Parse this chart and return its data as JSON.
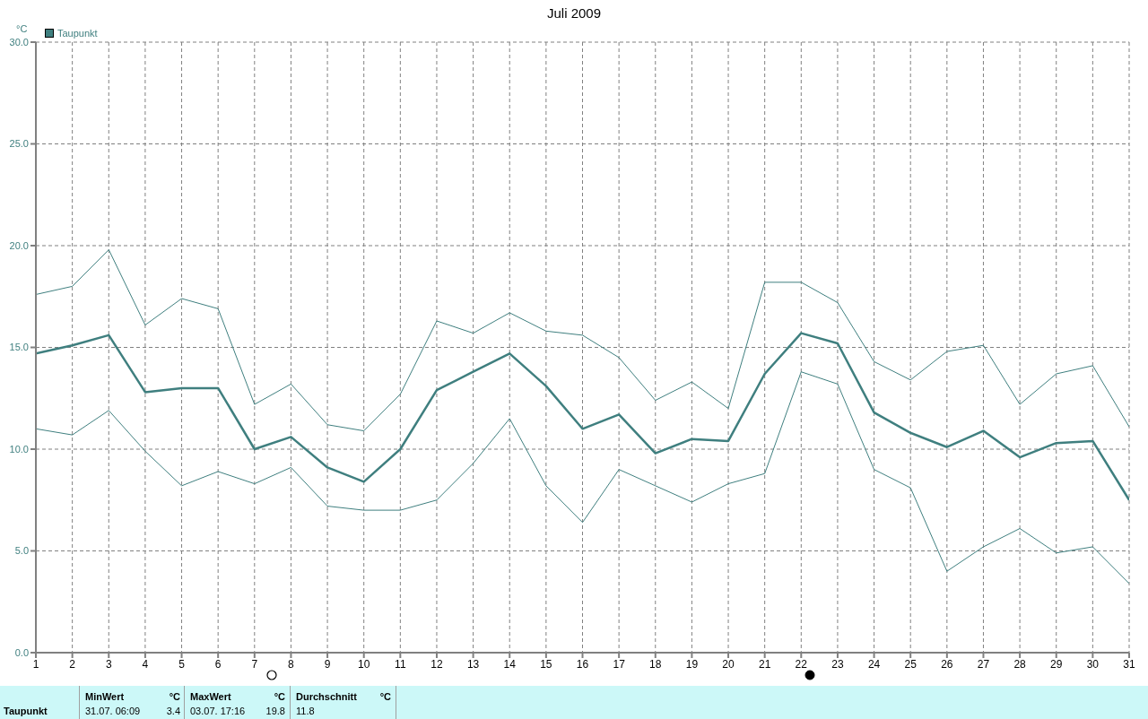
{
  "chart_data": {
    "type": "line",
    "title": "Juli 2009",
    "ylabel": "°C",
    "x": [
      1,
      2,
      3,
      4,
      5,
      6,
      7,
      8,
      9,
      10,
      11,
      12,
      13,
      14,
      15,
      16,
      17,
      18,
      19,
      20,
      21,
      22,
      23,
      24,
      25,
      26,
      27,
      28,
      29,
      30,
      31
    ],
    "series": [
      {
        "color": "#3f7f7f",
        "values": [
          17.6,
          18.0,
          19.8,
          16.1,
          17.4,
          16.9,
          12.2,
          13.2,
          11.2,
          10.9,
          12.7,
          16.3,
          15.7,
          16.7,
          15.8,
          15.6,
          14.5,
          12.4,
          13.3,
          12.0,
          18.2,
          18.2,
          17.2,
          14.3,
          13.4,
          14.8,
          15.1,
          12.2,
          13.7,
          14.1,
          11.1
        ]
      },
      {
        "name": "Taupunkt",
        "color": "#3f7f7f",
        "values": [
          14.7,
          15.1,
          15.6,
          12.8,
          13.0,
          13.0,
          10.0,
          10.6,
          9.1,
          8.4,
          10.0,
          12.9,
          13.8,
          14.7,
          13.1,
          11.0,
          11.7,
          9.8,
          10.5,
          10.4,
          13.7,
          15.7,
          15.2,
          11.8,
          10.8,
          10.1,
          10.9,
          9.6,
          10.3,
          10.4,
          7.5
        ]
      },
      {
        "color": "#3f7f7f",
        "values": [
          11.0,
          10.7,
          11.9,
          9.9,
          8.2,
          8.9,
          8.3,
          9.1,
          7.2,
          7.0,
          7.0,
          7.5,
          9.3,
          11.5,
          8.2,
          6.4,
          9.0,
          8.2,
          7.4,
          8.3,
          8.8,
          13.8,
          13.2,
          9.0,
          8.1,
          4.0,
          5.2,
          6.1,
          4.9,
          5.2,
          3.4
        ]
      }
    ],
    "xlim": [
      1,
      31
    ],
    "xticks": [
      1,
      2,
      3,
      4,
      5,
      6,
      7,
      8,
      9,
      10,
      11,
      12,
      13,
      14,
      15,
      16,
      17,
      18,
      19,
      20,
      21,
      22,
      23,
      24,
      25,
      26,
      27,
      28,
      29,
      30,
      31
    ],
    "ylim": [
      0,
      30
    ],
    "yticks": [
      {
        "value": 0,
        "label": "0.0"
      },
      {
        "value": 5,
        "label": "5.0"
      },
      {
        "value": 10,
        "label": "10.0"
      },
      {
        "value": 15,
        "label": "15.0"
      },
      {
        "value": 20,
        "label": "20.0"
      },
      {
        "value": 25,
        "label": "25.0"
      },
      {
        "value": 30,
        "label": "30.0"
      }
    ],
    "grid": true,
    "legend": "top left",
    "marker": "none",
    "line_style": "solid",
    "annotations": [
      "Taupunkt",
      "MinWert",
      "°C",
      "31.07.  06:09",
      "3.4",
      "MaxWert",
      "°C",
      "03.07.  17:16",
      "19.8",
      "Durchschnitt",
      "°C",
      "11.8"
    ]
  }
}
